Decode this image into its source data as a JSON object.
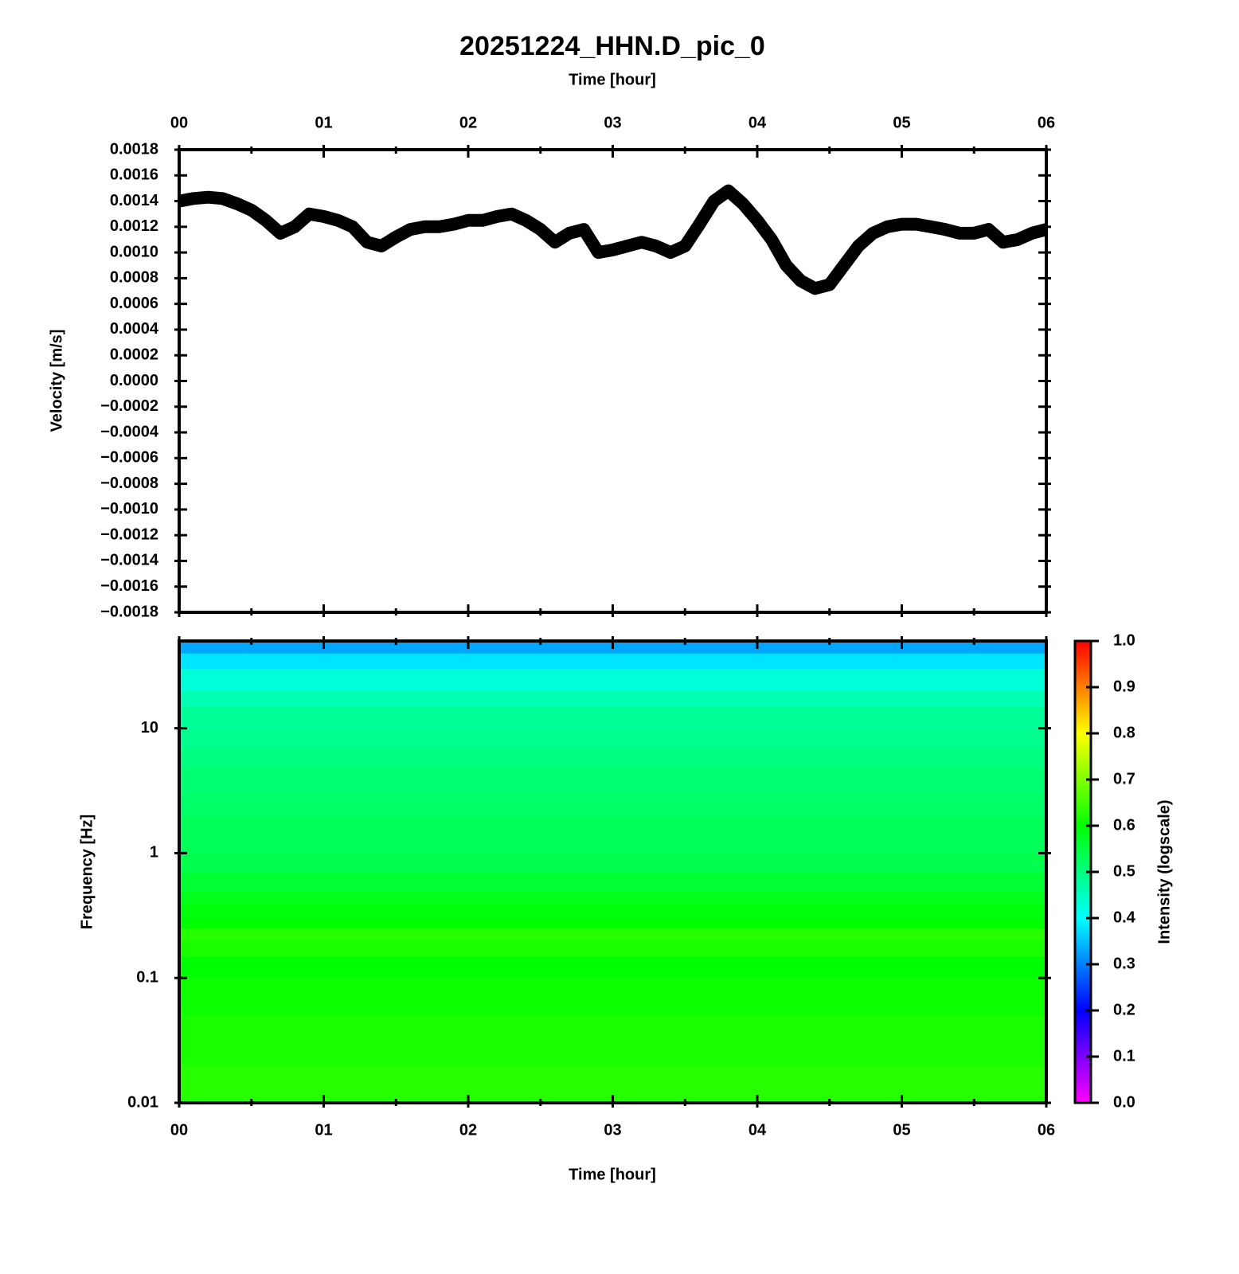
{
  "chart_data": [
    {
      "type": "line",
      "title": "20251224_HHN.D_pic_0",
      "xlabel": "Time [hour]",
      "ylabel": "Velocity [m/s]",
      "color": "#000000",
      "x": [
        0,
        0.1,
        0.2,
        0.3,
        0.4,
        0.5,
        0.6,
        0.7,
        0.8,
        0.9,
        1,
        1.1,
        1.2,
        1.3,
        1.4,
        1.5,
        1.6,
        1.7,
        1.8,
        1.9,
        2,
        2.1,
        2.2,
        2.3,
        2.4,
        2.5,
        2.6,
        2.7,
        2.8,
        2.9,
        3,
        3.1,
        3.2,
        3.3,
        3.4,
        3.5,
        3.6,
        3.7,
        3.8,
        3.9,
        4,
        4.1,
        4.2,
        4.3,
        4.4,
        4.5,
        4.6,
        4.7,
        4.8,
        4.9,
        5,
        5.1,
        5.2,
        5.3,
        5.4,
        5.5,
        5.6,
        5.7,
        5.8,
        5.9,
        6
      ],
      "values": [
        0.0014,
        0.00142,
        0.00143,
        0.00142,
        0.00138,
        0.00133,
        0.00125,
        0.00115,
        0.0012,
        0.0013,
        0.00128,
        0.00125,
        0.0012,
        0.00108,
        0.00105,
        0.00112,
        0.00118,
        0.0012,
        0.0012,
        0.00122,
        0.00125,
        0.00125,
        0.00128,
        0.0013,
        0.00125,
        0.00118,
        0.00108,
        0.00115,
        0.00118,
        0.001,
        0.00102,
        0.00105,
        0.00108,
        0.00105,
        0.001,
        0.00105,
        0.00122,
        0.0014,
        0.00148,
        0.00138,
        0.00125,
        0.0011,
        0.0009,
        0.00078,
        0.00072,
        0.00075,
        0.0009,
        0.00105,
        0.00115,
        0.0012,
        0.00122,
        0.00122,
        0.0012,
        0.00118,
        0.00115,
        0.00115,
        0.00118,
        0.00108,
        0.0011,
        0.00115,
        0.00118
      ],
      "xlim": [
        0,
        6
      ],
      "xticks": [
        {
          "value": 0,
          "label": "00"
        },
        {
          "value": 1,
          "label": "01"
        },
        {
          "value": 2,
          "label": "02"
        },
        {
          "value": 3,
          "label": "03"
        },
        {
          "value": 4,
          "label": "04"
        },
        {
          "value": 5,
          "label": "05"
        },
        {
          "value": 6,
          "label": "06"
        }
      ],
      "xminorticks": [
        0.5,
        1.5,
        2.5,
        3.5,
        4.5,
        5.5
      ],
      "ylim": [
        -0.0018,
        0.0018
      ],
      "yticks": [
        {
          "value": 0.0018,
          "label": "0.0018"
        },
        {
          "value": 0.0016,
          "label": "0.0016"
        },
        {
          "value": 0.0014,
          "label": "0.0014"
        },
        {
          "value": 0.0012,
          "label": "0.0012"
        },
        {
          "value": 0.001,
          "label": "0.0010"
        },
        {
          "value": 0.0008,
          "label": "0.0008"
        },
        {
          "value": 0.0006,
          "label": "0.0006"
        },
        {
          "value": 0.0004,
          "label": "0.0004"
        },
        {
          "value": 0.0002,
          "label": "0.0002"
        },
        {
          "value": 0,
          "label": "0.0000"
        },
        {
          "value": -0.0002,
          "label": "−0.0002"
        },
        {
          "value": -0.0004,
          "label": "−0.0004"
        },
        {
          "value": -0.0006,
          "label": "−0.0006"
        },
        {
          "value": -0.0008,
          "label": "−0.0008"
        },
        {
          "value": -0.001,
          "label": "−0.0010"
        },
        {
          "value": -0.0012,
          "label": "−0.0012"
        },
        {
          "value": -0.0014,
          "label": "−0.0014"
        },
        {
          "value": -0.0016,
          "label": "−0.0016"
        },
        {
          "value": -0.0018,
          "label": "−0.0018"
        }
      ]
    },
    {
      "type": "spectrogram",
      "xlabel": "Time [hour]",
      "ylabel": "Frequency [Hz]",
      "xlim": [
        0,
        6
      ],
      "xticks": [
        {
          "value": 0,
          "label": "00"
        },
        {
          "value": 1,
          "label": "01"
        },
        {
          "value": 2,
          "label": "02"
        },
        {
          "value": 3,
          "label": "03"
        },
        {
          "value": 4,
          "label": "04"
        },
        {
          "value": 5,
          "label": "05"
        },
        {
          "value": 6,
          "label": "06"
        }
      ],
      "xminorticks": [
        0.5,
        1.5,
        2.5,
        3.5,
        4.5,
        5.5
      ],
      "log_y": true,
      "ylim": [
        0.01,
        50
      ],
      "yticks": [
        0.01,
        0.1,
        1,
        10
      ],
      "freq_bins": [
        0.01,
        0.02,
        0.05,
        0.1,
        0.15,
        0.2,
        0.25,
        0.3,
        0.4,
        0.5,
        0.7,
        1,
        2,
        3,
        5,
        7,
        10,
        15,
        20,
        30,
        40,
        50
      ],
      "intensity": [
        0.63,
        0.62,
        0.61,
        0.6,
        0.62,
        0.63,
        0.6,
        0.59,
        0.58,
        0.56,
        0.54,
        0.53,
        0.52,
        0.51,
        0.5,
        0.49,
        0.48,
        0.46,
        0.43,
        0.38,
        0.33
      ],
      "clim": [
        0,
        1
      ],
      "cticks": [
        {
          "value": 0,
          "label": "0.0"
        },
        {
          "value": 0.1,
          "label": "0.1"
        },
        {
          "value": 0.2,
          "label": "0.2"
        },
        {
          "value": 0.3,
          "label": "0.3"
        },
        {
          "value": 0.4,
          "label": "0.4"
        },
        {
          "value": 0.5,
          "label": "0.5"
        },
        {
          "value": 0.6,
          "label": "0.6"
        },
        {
          "value": 0.7,
          "label": "0.7"
        },
        {
          "value": 0.8,
          "label": "0.8"
        },
        {
          "value": 0.9,
          "label": "0.9"
        },
        {
          "value": 1,
          "label": "1.0"
        }
      ],
      "colorbar_label": "Intensity (logscale)",
      "colormap": [
        "#ff00ff",
        "#0000ff",
        "#00ffff",
        "#00ff00",
        "#ffff00",
        "#ff0000"
      ]
    }
  ]
}
